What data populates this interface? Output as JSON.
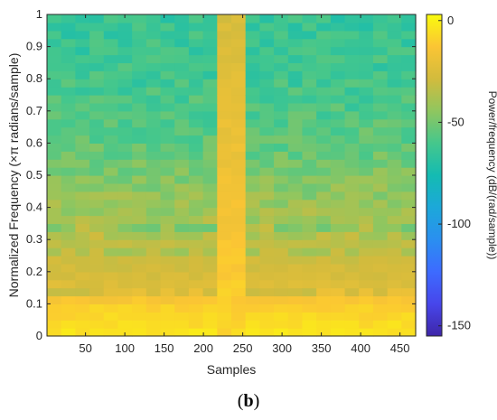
{
  "chart_data": {
    "type": "heatmap",
    "title": "",
    "xlabel": "Samples",
    "ylabel": "Normalized Frequency (×π radians/sample)",
    "xlim": [
      1,
      470
    ],
    "ylim": [
      0,
      1
    ],
    "x_ticks": [
      50,
      100,
      150,
      200,
      250,
      300,
      350,
      400,
      450
    ],
    "x_tick_labels": [
      "50",
      "100",
      "150",
      "200",
      "250",
      "300",
      "350",
      "400",
      "450"
    ],
    "y_ticks": [
      0,
      0.1,
      0.2,
      0.3,
      0.4,
      0.5,
      0.6,
      0.7,
      0.8,
      0.9,
      1
    ],
    "y_tick_labels": [
      "0",
      "0.1",
      "0.2",
      "0.3",
      "0.4",
      "0.5",
      "0.6",
      "0.7",
      "0.8",
      "0.9",
      "1"
    ],
    "colorbar": {
      "label": "Power/frequency (dB/(rad/sample))",
      "range": [
        -155,
        3
      ],
      "ticks": [
        0,
        -50,
        -100,
        -150
      ],
      "tick_labels": [
        "0",
        "-50",
        "-100",
        "-150"
      ],
      "colormap": "parula"
    },
    "x_bins": 26,
    "y_bins": 40,
    "bins_description": {
      "x_centers": [
        10,
        28,
        46,
        64,
        82,
        100,
        118,
        136,
        154,
        172,
        190,
        208,
        226,
        244,
        262,
        280,
        298,
        316,
        334,
        352,
        370,
        388,
        406,
        424,
        442,
        460
      ],
      "y_edges_step": 0.025
    },
    "profile_db_by_frequency": [
      {
        "freq": 0.0125,
        "db": -4
      },
      {
        "freq": 0.05,
        "db": -7
      },
      {
        "freq": 0.1,
        "db": -10
      },
      {
        "freq": 0.125,
        "db": -17
      },
      {
        "freq": 0.15,
        "db": -24
      },
      {
        "freq": 0.2,
        "db": -28
      },
      {
        "freq": 0.25,
        "db": -30
      },
      {
        "freq": 0.3,
        "db": -35
      },
      {
        "freq": 0.4,
        "db": -42
      },
      {
        "freq": 0.5,
        "db": -48
      },
      {
        "freq": 0.6,
        "db": -55
      },
      {
        "freq": 0.8,
        "db": -62
      },
      {
        "freq": 1.0,
        "db": -65
      }
    ],
    "burst_columns": {
      "x_range": [
        217,
        262
      ],
      "db_high_freq": -22,
      "db_low_freq": -8
    },
    "notch_lines_freq": [
      0.14,
      0.2,
      0.27,
      0.33,
      0.4
    ],
    "panel_label": "(b)"
  }
}
